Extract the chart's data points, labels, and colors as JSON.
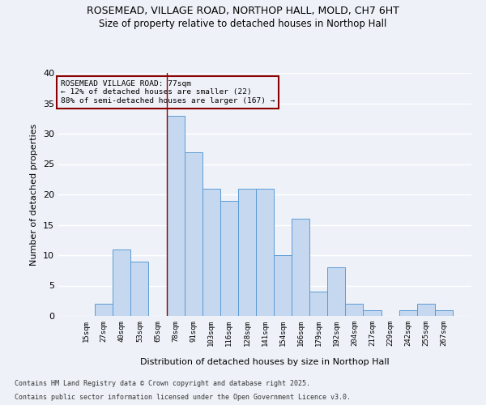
{
  "title1": "ROSEMEAD, VILLAGE ROAD, NORTHOP HALL, MOLD, CH7 6HT",
  "title2": "Size of property relative to detached houses in Northop Hall",
  "xlabel": "Distribution of detached houses by size in Northop Hall",
  "ylabel": "Number of detached properties",
  "annotation_title": "ROSEMEAD VILLAGE ROAD: 77sqm",
  "annotation_line2": "← 12% of detached houses are smaller (22)",
  "annotation_line3": "88% of semi-detached houses are larger (167) →",
  "footnote1": "Contains HM Land Registry data © Crown copyright and database right 2025.",
  "footnote2": "Contains public sector information licensed under the Open Government Licence v3.0.",
  "bar_labels": [
    "15sqm",
    "27sqm",
    "40sqm",
    "53sqm",
    "65sqm",
    "78sqm",
    "91sqm",
    "103sqm",
    "116sqm",
    "128sqm",
    "141sqm",
    "154sqm",
    "166sqm",
    "179sqm",
    "192sqm",
    "204sqm",
    "217sqm",
    "229sqm",
    "242sqm",
    "255sqm",
    "267sqm"
  ],
  "bar_values": [
    0,
    2,
    11,
    9,
    0,
    33,
    27,
    21,
    19,
    21,
    21,
    10,
    16,
    4,
    8,
    2,
    1,
    0,
    1,
    2,
    1
  ],
  "bar_color": "#c5d8f0",
  "bar_edge_color": "#5b9bd5",
  "vline_index": 5,
  "vline_color": "#8b0000",
  "annotation_box_color": "#8b0000",
  "ylim": [
    0,
    40
  ],
  "yticks": [
    0,
    5,
    10,
    15,
    20,
    25,
    30,
    35,
    40
  ],
  "background_color": "#eef2f8",
  "grid_color": "#ffffff"
}
